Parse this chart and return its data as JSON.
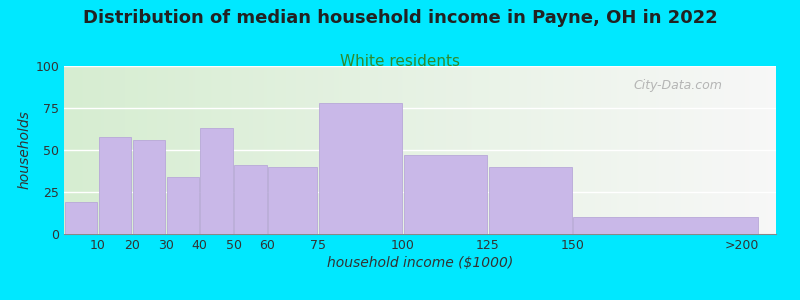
{
  "title": "Distribution of median household income in Payne, OH in 2022",
  "subtitle": "White residents",
  "xlabel": "household income ($1000)",
  "ylabel": "households",
  "xtick_labels": [
    "10",
    "20",
    "30",
    "40",
    "50",
    "60",
    "75",
    "100",
    "125",
    "150",
    ">200"
  ],
  "xtick_positions": [
    10,
    20,
    30,
    40,
    50,
    60,
    75,
    100,
    125,
    150,
    200
  ],
  "bar_lefts": [
    0,
    10,
    20,
    30,
    40,
    50,
    60,
    75,
    100,
    125,
    150
  ],
  "bar_widths": [
    10,
    10,
    10,
    10,
    10,
    10,
    15,
    25,
    25,
    25,
    55
  ],
  "bar_values": [
    19,
    58,
    56,
    34,
    63,
    41,
    40,
    78,
    47,
    40,
    10
  ],
  "bar_color": "#c9b8e8",
  "bar_edge_color": "#b8a8d8",
  "ylim": [
    0,
    100
  ],
  "xlim": [
    0,
    210
  ],
  "yticks": [
    0,
    25,
    50,
    75,
    100
  ],
  "title_fontsize": 13,
  "subtitle_fontsize": 11,
  "subtitle_color": "#2e8b2e",
  "axis_label_fontsize": 10,
  "tick_fontsize": 9,
  "background_outer": "#00e8ff",
  "watermark": "City-Data.com",
  "grid_color": "#ffffff",
  "grid_linewidth": 1.0
}
